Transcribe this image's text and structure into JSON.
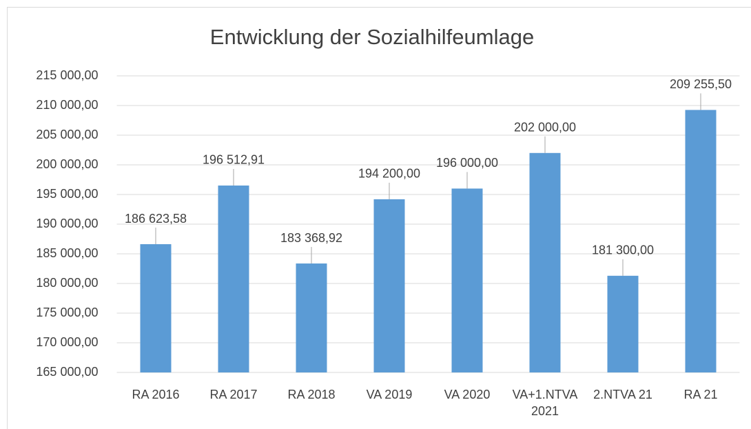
{
  "chart_data": {
    "type": "bar",
    "title": "Entwicklung der Sozialhilfeumlage",
    "categories": [
      "RA 2016",
      "RA 2017",
      "RA 2018",
      "VA 2019",
      "VA 2020",
      "VA+1.NTVA 2021",
      "2.NTVA 21",
      "RA 21"
    ],
    "values": [
      186623.58,
      196512.91,
      183368.92,
      194200,
      196000,
      202000,
      181300,
      209255.5
    ],
    "value_labels": [
      "186 623,58",
      "196 512,91",
      "183 368,92",
      "194 200,00",
      "196 000,00",
      "202 000,00",
      "181 300,00",
      "209 255,50"
    ],
    "color": "#5b9bd5",
    "ylim": [
      165000,
      215000
    ],
    "yticks": [
      {
        "value": 165000,
        "label": "165 000,00"
      },
      {
        "value": 170000,
        "label": "170 000,00"
      },
      {
        "value": 175000,
        "label": "175 000,00"
      },
      {
        "value": 180000,
        "label": "180 000,00"
      },
      {
        "value": 185000,
        "label": "185 000,00"
      },
      {
        "value": 190000,
        "label": "190 000,00"
      },
      {
        "value": 195000,
        "label": "195 000,00"
      },
      {
        "value": 200000,
        "label": "200 000,00"
      },
      {
        "value": 205000,
        "label": "205 000,00"
      },
      {
        "value": 210000,
        "label": "210 000,00"
      },
      {
        "value": 215000,
        "label": "215 000,00"
      }
    ],
    "grid": true
  }
}
